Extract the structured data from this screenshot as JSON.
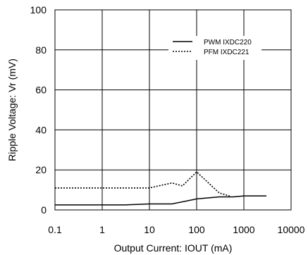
{
  "chart_data": {
    "type": "line",
    "xlabel": "Output Current: IOUT (mA)",
    "ylabel": "Ripple Voltage: Vr (mV)",
    "xscale": "log",
    "xlim": [
      0.1,
      10000
    ],
    "ylim": [
      0,
      100
    ],
    "x_ticks": [
      0.1,
      1,
      10,
      100,
      1000,
      10000
    ],
    "x_tick_labels": [
      "0.1",
      "1",
      "10",
      "100",
      "1000",
      "10000"
    ],
    "y_ticks": [
      0,
      20,
      40,
      60,
      80,
      100
    ],
    "y_tick_labels": [
      "0",
      "20",
      "40",
      "60",
      "80",
      "100"
    ],
    "grid": true,
    "legend_position": "top-right",
    "series": [
      {
        "name": "PWM  IXDC220",
        "style": "solid",
        "color": "#000000",
        "x": [
          0.1,
          1,
          3,
          10,
          30,
          100,
          300,
          600,
          1000,
          3000
        ],
        "y": [
          2.5,
          2.5,
          2.5,
          3,
          3,
          5.5,
          6.5,
          6.5,
          7,
          7
        ]
      },
      {
        "name": "PFM  IXDC221",
        "style": "dotted",
        "color": "#000000",
        "x": [
          0.1,
          1,
          10,
          30,
          50,
          100,
          300,
          500
        ],
        "y": [
          11,
          11,
          11,
          13.5,
          12,
          19,
          8.5,
          7
        ]
      }
    ]
  }
}
